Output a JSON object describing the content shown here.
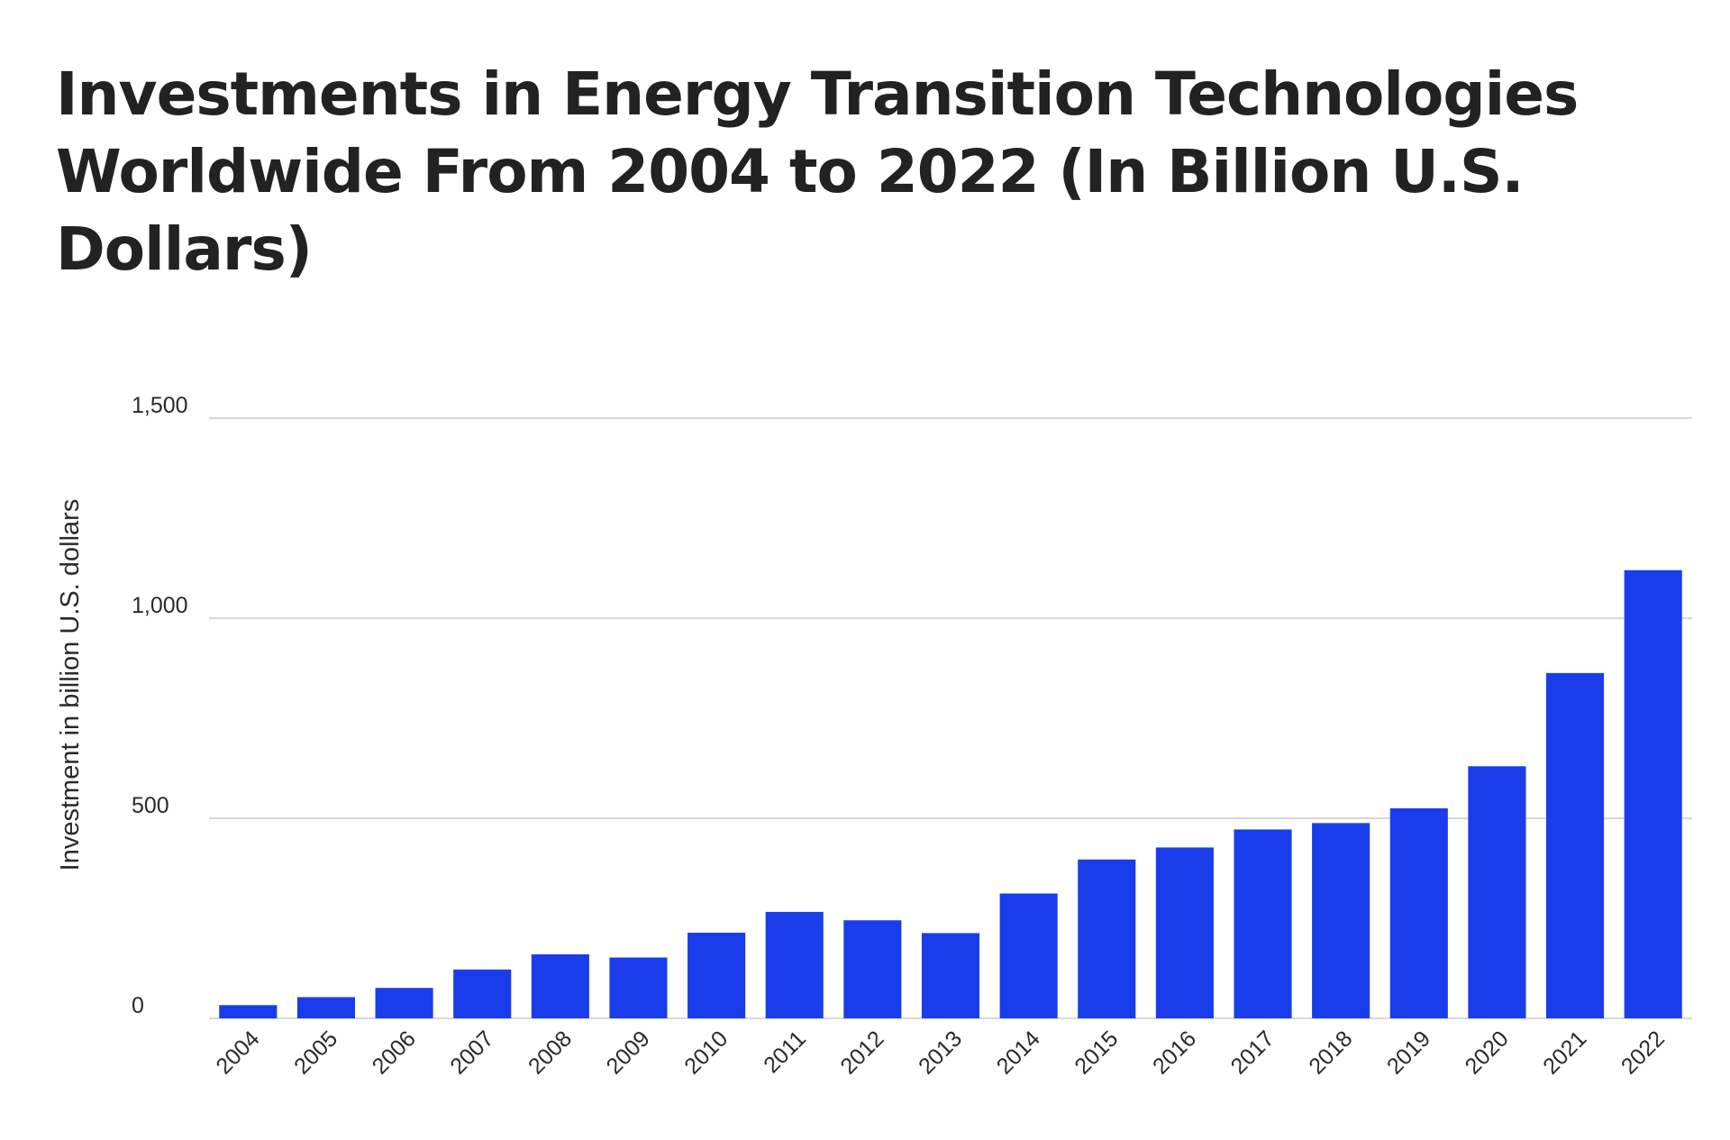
{
  "chart_data": {
    "type": "bar",
    "title": "Investments in Energy Transition Technologies Worldwide From 2004 to 2022 (In Billion U.S. Dollars)",
    "xlabel": "",
    "ylabel": "Investment in billion U.S. dollars",
    "categories": [
      "2004",
      "2005",
      "2006",
      "2007",
      "2008",
      "2009",
      "2010",
      "2011",
      "2012",
      "2013",
      "2014",
      "2015",
      "2016",
      "2017",
      "2018",
      "2019",
      "2020",
      "2021",
      "2022"
    ],
    "values": [
      33,
      53,
      76,
      122,
      160,
      152,
      214,
      266,
      245,
      213,
      312,
      397,
      427,
      472,
      488,
      525,
      630,
      863,
      1120
    ],
    "ylim": [
      0,
      1500
    ],
    "yticks": [
      0,
      500,
      1000,
      1500
    ],
    "ytick_labels": [
      "0",
      "500",
      "1,000",
      "1,500"
    ],
    "grid": true,
    "legend": "none",
    "bar_color": "#1a3deb",
    "grid_color": "#cccccc"
  }
}
